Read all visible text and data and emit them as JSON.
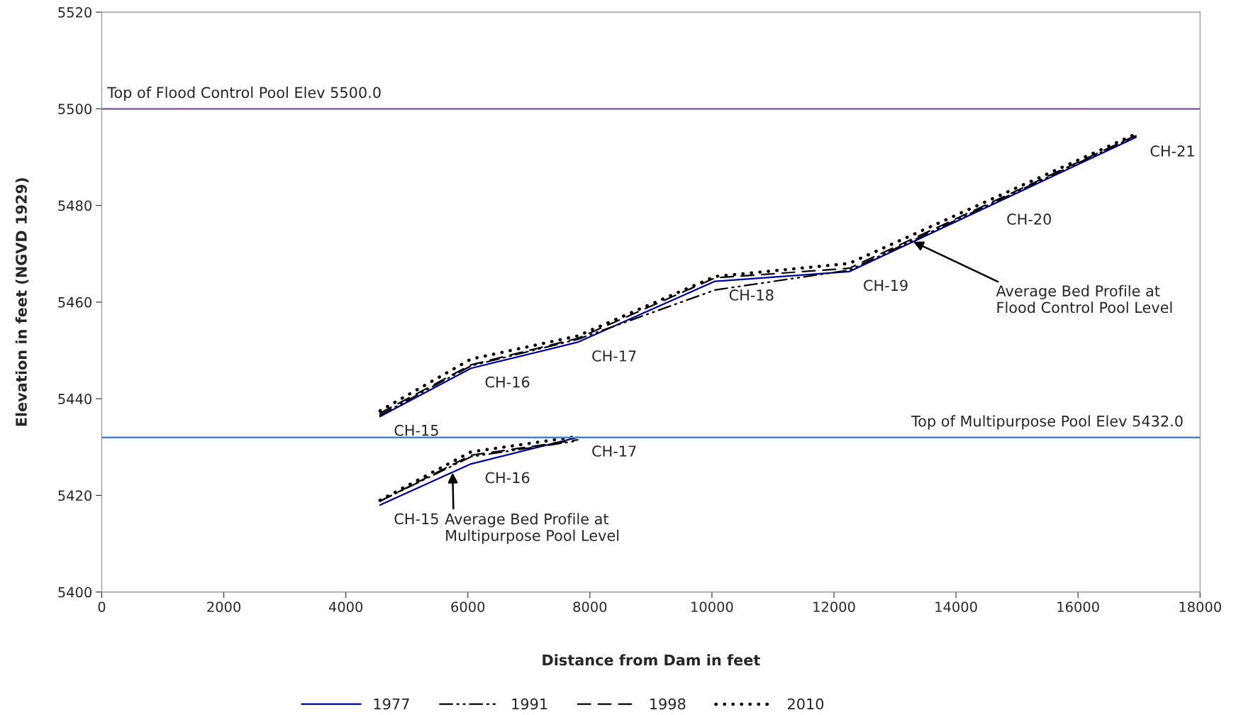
{
  "chart_data": {
    "type": "line",
    "xlabel": "Distance from Dam in feet",
    "ylabel": "Elevation in feet (NGVD 1929)",
    "xlim": [
      0,
      18000
    ],
    "xticks": [
      0,
      2000,
      4000,
      6000,
      8000,
      10000,
      12000,
      14000,
      16000,
      18000
    ],
    "ylim": [
      5400,
      5520
    ],
    "yticks": [
      5400,
      5420,
      5440,
      5460,
      5480,
      5500,
      5520
    ],
    "grid": false,
    "legend": "bottom",
    "series": [
      {
        "name": "1977",
        "color": "#000080",
        "line_style": "solid",
        "x": [
          4560,
          6050,
          7800,
          10050,
          12250,
          16950
        ],
        "values": [
          5436.3,
          5446.3,
          5451.7,
          5464.3,
          5466.3,
          5494.1
        ]
      },
      {
        "name": "1991",
        "color": "#000000",
        "line_style": "dashdot",
        "x": [
          4560,
          6050,
          7800,
          10050,
          12250,
          16950
        ],
        "values": [
          5436.6,
          5446.8,
          5452.3,
          5462.5,
          5466.6,
          5494.4
        ]
      },
      {
        "name": "1998",
        "color": "#000000",
        "line_style": "dashed",
        "x": [
          4560,
          6050,
          7800,
          10050,
          12250,
          16950
        ],
        "values": [
          5437,
          5447,
          5452.5,
          5465,
          5467,
          5494.5
        ]
      },
      {
        "name": "2010",
        "color": "#000000",
        "line_style": "dotted",
        "x": [
          4560,
          6050,
          7800,
          10050,
          12250,
          16950
        ],
        "values": [
          5437.5,
          5448.2,
          5453,
          5465.3,
          5468,
          5494.8
        ]
      },
      {
        "color": "#000080",
        "line_style": "solid",
        "x": [
          4560,
          6050,
          7800
        ],
        "values": [
          5418,
          5426.5,
          5432
        ]
      },
      {
        "color": "#000000",
        "line_style": "dashdot",
        "x": [
          4560,
          6050,
          7800
        ],
        "values": [
          5418.8,
          5428,
          5431.3
        ]
      },
      {
        "color": "#000000",
        "line_style": "dashed",
        "x": [
          4560,
          6050,
          7800
        ],
        "values": [
          5418.8,
          5428.3,
          5431.5
        ]
      },
      {
        "color": "#000000",
        "line_style": "dotted",
        "x": [
          4560,
          6050,
          7800
        ],
        "values": [
          5419,
          5429,
          5432.2
        ]
      }
    ],
    "ref_lines": [
      {
        "axis": "y",
        "value": 5500,
        "label": "Top of Flood Control Pool Elev 5500.0",
        "color": "#8064a2"
      },
      {
        "axis": "y",
        "value": 5432,
        "label": "Top of Multipurpose Pool Elev 5432.0",
        "color": "#4f81bd"
      }
    ],
    "annotations": [
      {
        "text": "CH-15",
        "x": 4560,
        "y": 5436.3
      },
      {
        "text": "CH-16",
        "x": 6050,
        "y": 5446.3
      },
      {
        "text": "CH-17",
        "x": 7800,
        "y": 5451.7
      },
      {
        "text": "CH-18",
        "x": 10050,
        "y": 5464.3
      },
      {
        "text": "CH-19",
        "x": 12250,
        "y": 5466.3
      },
      {
        "text": "CH-20",
        "x": 14600,
        "y": 5480
      },
      {
        "text": "CH-21",
        "x": 16950,
        "y": 5494.1
      },
      {
        "text": "CH-15",
        "x": 4560,
        "y": 5418
      },
      {
        "text": "CH-16",
        "x": 6050,
        "y": 5426.5
      },
      {
        "text": "CH-17",
        "x": 7800,
        "y": 5432
      },
      {
        "text": "Average Bed Profile at\nFlood Control Pool Level",
        "x": 13300,
        "y": 5472.5
      },
      {
        "text": "Average Bed Profile at\nMultipurpose Pool Level",
        "x": 5750,
        "y": 5424.7
      }
    ]
  }
}
